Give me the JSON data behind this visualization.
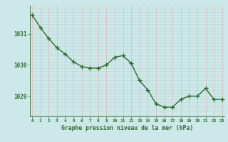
{
  "hours": [
    0,
    1,
    2,
    3,
    4,
    5,
    6,
    7,
    8,
    9,
    10,
    11,
    12,
    13,
    14,
    15,
    16,
    17,
    18,
    19,
    20,
    21,
    22,
    23
  ],
  "pressure": [
    1031.6,
    1031.2,
    1030.85,
    1030.55,
    1030.35,
    1030.1,
    1029.95,
    1029.9,
    1029.9,
    1030.0,
    1030.25,
    1030.3,
    1030.05,
    1029.5,
    1029.2,
    1028.75,
    1028.65,
    1028.65,
    1028.9,
    1029.0,
    1029.0,
    1029.25,
    1028.9,
    1028.9
  ],
  "line_color": "#2d6a2d",
  "marker_color": "#2d6a2d",
  "bg_color": "#cce8e8",
  "grid_color_v": "#e8b4b4",
  "grid_color_h": "#b8d4d4",
  "xlabel": "Graphe pression niveau de la mer (hPa)",
  "xlabel_color": "#2d6a2d",
  "tick_label_color": "#2d6a2d",
  "ylim": [
    1028.35,
    1031.9
  ],
  "yticks": [
    1029.0,
    1030.0,
    1031.0
  ],
  "xlim": [
    -0.3,
    23.3
  ],
  "figsize": [
    3.2,
    2.0
  ],
  "dpi": 100
}
